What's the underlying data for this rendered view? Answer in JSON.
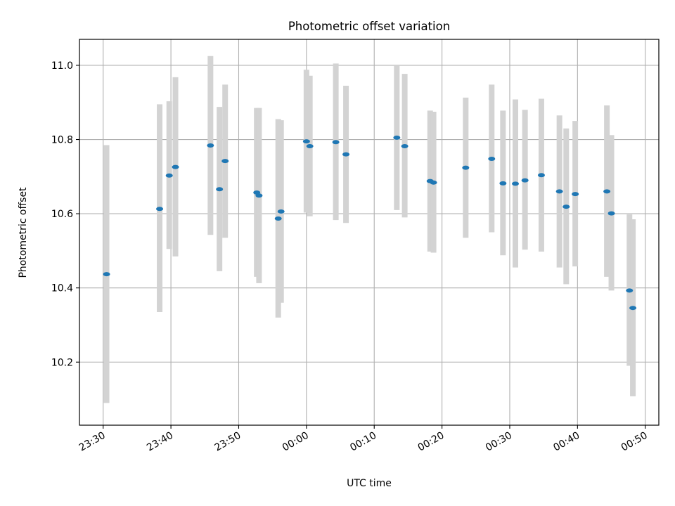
{
  "chart_data": {
    "type": "scatter",
    "title": "Photometric offset variation",
    "xlabel": "UTC time",
    "ylabel": "Photometric offset",
    "grid": true,
    "legend": "none",
    "xlim": [
      "23:26:30",
      "00:52:00"
    ],
    "ylim": [
      10.03,
      11.07
    ],
    "x_ticks": [
      "23:30",
      "23:40",
      "23:50",
      "00:00",
      "00:10",
      "00:20",
      "00:30",
      "00:40",
      "00:50"
    ],
    "y_ticks": [
      "10.2",
      "10.4",
      "10.6",
      "10.8",
      "11.0"
    ],
    "colors": {
      "point": "#1f77b4",
      "errorbar": "#d3d3d3",
      "grid": "#b0b0b0"
    },
    "series": [
      {
        "points": [
          {
            "x": "23:30:30",
            "y": 10.437,
            "lo": 10.09,
            "hi": 10.785
          },
          {
            "x": "23:38:20",
            "y": 10.613,
            "lo": 10.335,
            "hi": 10.895
          },
          {
            "x": "23:39:45",
            "y": 10.703,
            "lo": 10.505,
            "hi": 10.903
          },
          {
            "x": "23:40:40",
            "y": 10.726,
            "lo": 10.485,
            "hi": 10.968
          },
          {
            "x": "23:45:50",
            "y": 10.784,
            "lo": 10.543,
            "hi": 11.025
          },
          {
            "x": "23:47:10",
            "y": 10.666,
            "lo": 10.445,
            "hi": 10.888
          },
          {
            "x": "23:48:00",
            "y": 10.742,
            "lo": 10.535,
            "hi": 10.948
          },
          {
            "x": "23:52:40",
            "y": 10.657,
            "lo": 10.43,
            "hi": 10.885
          },
          {
            "x": "23:53:00",
            "y": 10.649,
            "lo": 10.413,
            "hi": 10.885
          },
          {
            "x": "23:55:50",
            "y": 10.587,
            "lo": 10.32,
            "hi": 10.855
          },
          {
            "x": "23:56:15",
            "y": 10.606,
            "lo": 10.36,
            "hi": 10.852
          },
          {
            "x": "00:00:00",
            "y": 10.795,
            "lo": 10.603,
            "hi": 10.988
          },
          {
            "x": "00:00:30",
            "y": 10.782,
            "lo": 10.593,
            "hi": 10.972
          },
          {
            "x": "00:04:20",
            "y": 10.793,
            "lo": 10.583,
            "hi": 11.005
          },
          {
            "x": "00:05:50",
            "y": 10.76,
            "lo": 10.575,
            "hi": 10.945
          },
          {
            "x": "00:13:20",
            "y": 10.805,
            "lo": 10.61,
            "hi": 11.0
          },
          {
            "x": "00:14:30",
            "y": 10.782,
            "lo": 10.59,
            "hi": 10.977
          },
          {
            "x": "00:18:15",
            "y": 10.688,
            "lo": 10.498,
            "hi": 10.878
          },
          {
            "x": "00:18:45",
            "y": 10.684,
            "lo": 10.495,
            "hi": 10.875
          },
          {
            "x": "00:23:30",
            "y": 10.724,
            "lo": 10.535,
            "hi": 10.913
          },
          {
            "x": "00:27:20",
            "y": 10.748,
            "lo": 10.55,
            "hi": 10.948
          },
          {
            "x": "00:29:00",
            "y": 10.682,
            "lo": 10.488,
            "hi": 10.878
          },
          {
            "x": "00:30:50",
            "y": 10.681,
            "lo": 10.455,
            "hi": 10.908
          },
          {
            "x": "00:32:15",
            "y": 10.69,
            "lo": 10.503,
            "hi": 10.88
          },
          {
            "x": "00:34:40",
            "y": 10.704,
            "lo": 10.498,
            "hi": 10.91
          },
          {
            "x": "00:37:20",
            "y": 10.66,
            "lo": 10.455,
            "hi": 10.865
          },
          {
            "x": "00:38:20",
            "y": 10.619,
            "lo": 10.41,
            "hi": 10.83
          },
          {
            "x": "00:39:40",
            "y": 10.653,
            "lo": 10.458,
            "hi": 10.85
          },
          {
            "x": "00:44:20",
            "y": 10.66,
            "lo": 10.43,
            "hi": 10.892
          },
          {
            "x": "00:45:00",
            "y": 10.601,
            "lo": 10.393,
            "hi": 10.812
          },
          {
            "x": "00:47:40",
            "y": 10.393,
            "lo": 10.19,
            "hi": 10.598
          },
          {
            "x": "00:48:10",
            "y": 10.346,
            "lo": 10.108,
            "hi": 10.585
          }
        ]
      }
    ]
  }
}
